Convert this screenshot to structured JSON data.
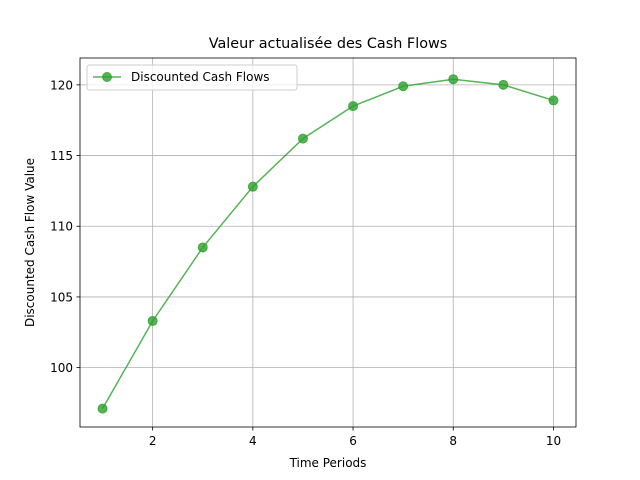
{
  "chart_data": {
    "type": "line",
    "title": "Valeur actualisée des Cash Flows",
    "xlabel": "Time Periods",
    "ylabel": "Discounted Cash Flow Value",
    "xlim": [
      0.55,
      10.45
    ],
    "ylim": [
      95.8,
      121.9
    ],
    "xticks": [
      2,
      4,
      6,
      8,
      10
    ],
    "yticks": [
      100,
      105,
      110,
      115,
      120
    ],
    "grid": true,
    "legend_position": "upper left",
    "x": [
      1,
      2,
      3,
      4,
      5,
      6,
      7,
      8,
      9,
      10
    ],
    "series": [
      {
        "name": "Discounted Cash Flows",
        "color": "#2ca02c",
        "marker": "circle",
        "values": [
          97.1,
          103.3,
          108.5,
          112.8,
          116.2,
          118.5,
          119.9,
          120.4,
          120.0,
          118.9
        ]
      }
    ]
  }
}
